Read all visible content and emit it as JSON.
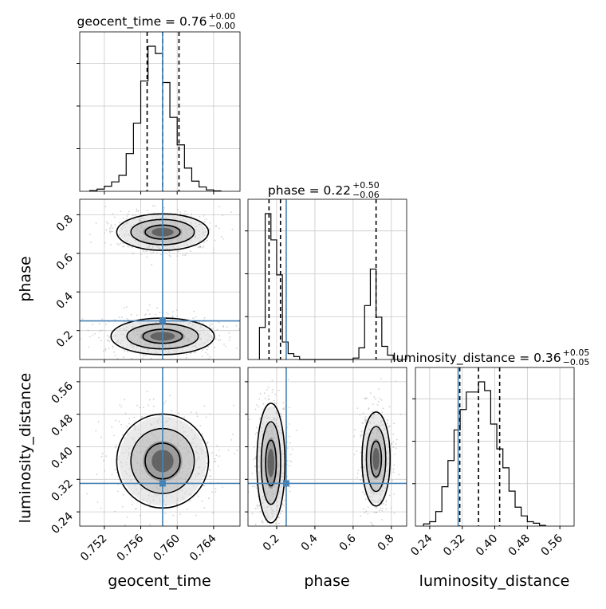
{
  "chart_data": {
    "type": "corner",
    "parameters": [
      "geocent_time",
      "phase",
      "luminosity_distance"
    ],
    "axis_labels": [
      "geocent_time",
      "phase",
      "luminosity_distance"
    ],
    "truths": {
      "geocent_time": 0.7584,
      "phase": 0.25,
      "luminosity_distance": 0.31
    },
    "truth_color": "#4682b4",
    "grid": true,
    "titles": [
      {
        "param": "geocent_time",
        "prefix": "geocent_time = 0.76",
        "sup": "+0.00",
        "sub": "−0.00"
      },
      {
        "param": "phase",
        "prefix": "phase = 0.22",
        "sup": "+0.50",
        "sub": "−0.06"
      },
      {
        "param": "luminosity_distance",
        "prefix": "luminosity_distance = 0.36",
        "sup": "+0.05",
        "sub": "−0.05"
      }
    ],
    "ranges": {
      "geocent_time": [
        0.7493,
        0.7669
      ],
      "phase": [
        0.05,
        0.88
      ],
      "luminosity_distance": [
        0.205,
        0.595
      ]
    },
    "ticks": {
      "geocent_time": [
        "0.752",
        "0.756",
        "0.760",
        "0.764"
      ],
      "phase_y": [
        "0.2",
        "0.4",
        "0.6",
        "0.8"
      ],
      "phase_x": [
        "0.2",
        "0.4",
        "0.6",
        "0.8"
      ],
      "luminosity_distance_y": [
        "0.24",
        "0.32",
        "0.40",
        "0.48",
        "0.56"
      ],
      "luminosity_distance_x": [
        "0.24",
        "0.32",
        "0.40",
        "0.48",
        "0.56"
      ]
    },
    "histograms": {
      "geocent_time": {
        "edges": [
          0.7504,
          0.7512,
          0.752,
          0.7528,
          0.7536,
          0.7544,
          0.7552,
          0.756,
          0.7568,
          0.7576,
          0.7584,
          0.7592,
          0.76,
          0.7608,
          0.7616,
          0.7624,
          0.7632,
          0.764,
          0.7648
        ],
        "counts": [
          0.5,
          1.5,
          3.5,
          6.5,
          11,
          26,
          47,
          76,
          100,
          95,
          75,
          51,
          32,
          16,
          7,
          3,
          1,
          0.3
        ],
        "quantiles": [
          0.7567,
          0.7584,
          0.7602
        ]
      },
      "phase": {
        "edges": [
          0.11,
          0.14,
          0.17,
          0.2,
          0.23,
          0.26,
          0.29,
          0.32,
          0.6,
          0.63,
          0.66,
          0.69,
          0.72,
          0.75,
          0.78,
          0.81
        ],
        "counts": [
          22,
          100,
          82,
          58,
          12,
          4,
          2,
          0,
          1,
          8,
          37,
          62,
          29,
          9,
          3
        ],
        "quantiles": [
          0.16,
          0.22,
          0.72
        ]
      },
      "luminosity_distance": {
        "edges": [
          0.225,
          0.24,
          0.255,
          0.27,
          0.285,
          0.3,
          0.315,
          0.33,
          0.345,
          0.36,
          0.375,
          0.39,
          0.405,
          0.42,
          0.435,
          0.45,
          0.465,
          0.48,
          0.495,
          0.51,
          0.525
        ],
        "counts": [
          1.5,
          3,
          10,
          27,
          45,
          66,
          80,
          92,
          92,
          99,
          93,
          70,
          53,
          40,
          24,
          13,
          7,
          3,
          2,
          0.5
        ],
        "quantiles": [
          0.314,
          0.36,
          0.412
        ]
      }
    },
    "blobs": {
      "phase_vs_geocent_time": [
        {
          "cx": 0.7584,
          "cy": 0.71,
          "sx": 0.0024,
          "sy": 0.045
        },
        {
          "cx": 0.7584,
          "cy": 0.17,
          "sx": 0.0027,
          "sy": 0.045
        }
      ],
      "luminosity_distance_vs_geocent_time": [
        {
          "cx": 0.7584,
          "cy": 0.365,
          "sx": 0.0024,
          "sy": 0.055
        }
      ],
      "luminosity_distance_vs_phase": [
        {
          "cx": 0.17,
          "cy": 0.36,
          "sx": 0.035,
          "sy": 0.07
        },
        {
          "cx": 0.72,
          "cy": 0.37,
          "sx": 0.035,
          "sy": 0.055
        }
      ]
    }
  }
}
